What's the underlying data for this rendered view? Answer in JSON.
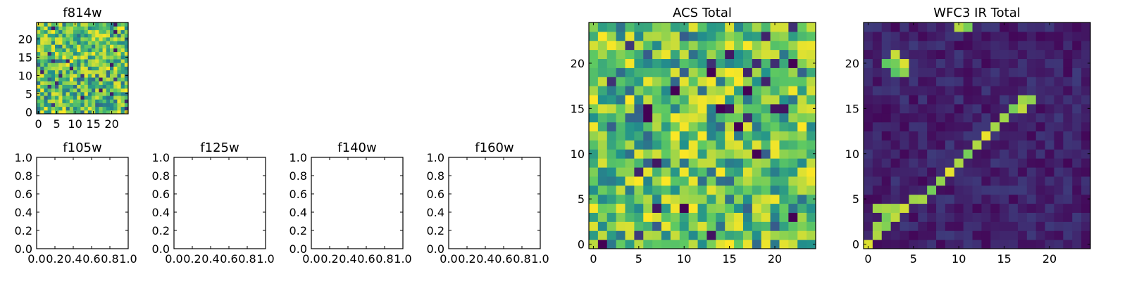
{
  "figure": {
    "background": "#ffffff",
    "colormap": "viridis",
    "colormap_stops": [
      "#440154",
      "#3b528b",
      "#21918c",
      "#5ec962",
      "#fde725"
    ]
  },
  "chart_data": [
    {
      "type": "heatmap",
      "title": "f814w",
      "grid_size": 25,
      "xlim": [
        -0.5,
        24.5
      ],
      "ylim": [
        -0.5,
        24.5
      ],
      "xticks": [
        0,
        5,
        10,
        15,
        20
      ],
      "yticks": [
        0,
        5,
        10,
        15,
        20
      ],
      "tick_labels_x": [
        "0",
        "5",
        "10",
        "15",
        "20"
      ],
      "tick_labels_y": [
        "0",
        "5",
        "10",
        "15",
        "20"
      ],
      "grid": false,
      "values_summary": "random noise field, mostly mid-to-high intensity (green/yellow) with scattered dark pixels"
    },
    {
      "type": "heatmap",
      "title": "f105w",
      "empty": true,
      "xlim": [
        0,
        1
      ],
      "ylim": [
        0,
        1
      ],
      "tick_labels_x": [
        "0.0",
        "0.2",
        "0.4",
        "0.6",
        "0.8",
        "1.0"
      ],
      "tick_labels_y": [
        "0.0",
        "0.2",
        "0.4",
        "0.6",
        "0.8",
        "1.0"
      ],
      "grid": false
    },
    {
      "type": "heatmap",
      "title": "f125w",
      "empty": true,
      "xlim": [
        0,
        1
      ],
      "ylim": [
        0,
        1
      ],
      "tick_labels_x": [
        "0.0",
        "0.2",
        "0.4",
        "0.6",
        "0.8",
        "1.0"
      ],
      "tick_labels_y": [
        "0.0",
        "0.2",
        "0.4",
        "0.6",
        "0.8",
        "1.0"
      ],
      "grid": false
    },
    {
      "type": "heatmap",
      "title": "f140w",
      "empty": true,
      "xlim": [
        0,
        1
      ],
      "ylim": [
        0,
        1
      ],
      "tick_labels_x": [
        "0.0",
        "0.2",
        "0.4",
        "0.6",
        "0.8",
        "1.0"
      ],
      "tick_labels_y": [
        "0.0",
        "0.2",
        "0.4",
        "0.6",
        "0.8",
        "1.0"
      ],
      "grid": false
    },
    {
      "type": "heatmap",
      "title": "f160w",
      "empty": true,
      "xlim": [
        0,
        1
      ],
      "ylim": [
        0,
        1
      ],
      "tick_labels_x": [
        "0.0",
        "0.2",
        "0.4",
        "0.6",
        "0.8",
        "1.0"
      ],
      "tick_labels_y": [
        "0.0",
        "0.2",
        "0.4",
        "0.6",
        "0.8",
        "1.0"
      ],
      "grid": false
    },
    {
      "type": "heatmap",
      "title": "ACS Total",
      "grid_size": 25,
      "xlim": [
        -0.5,
        24.5
      ],
      "ylim": [
        -0.5,
        24.5
      ],
      "xticks": [
        0,
        5,
        10,
        15,
        20
      ],
      "yticks": [
        0,
        5,
        10,
        15,
        20
      ],
      "tick_labels_x": [
        "0",
        "5",
        "10",
        "15",
        "20"
      ],
      "tick_labels_y": [
        "0",
        "5",
        "10",
        "15",
        "20"
      ],
      "grid": false,
      "values_summary": "random noise field, mostly mid-to-high intensity with a few dark pixels",
      "dark_pixels": [
        [
          1,
          0
        ],
        [
          6,
          15
        ],
        [
          6,
          14
        ],
        [
          9,
          17
        ],
        [
          13,
          19
        ],
        [
          16,
          13
        ],
        [
          17,
          17
        ],
        [
          18,
          10
        ],
        [
          22,
          3
        ],
        [
          22,
          20
        ],
        [
          10,
          4
        ],
        [
          14,
          15
        ]
      ]
    },
    {
      "type": "heatmap",
      "title": "WFC3 IR Total",
      "grid_size": 25,
      "xlim": [
        -0.5,
        24.5
      ],
      "ylim": [
        -0.5,
        24.5
      ],
      "xticks": [
        0,
        5,
        10,
        15,
        20
      ],
      "yticks": [
        0,
        5,
        10,
        15,
        20
      ],
      "tick_labels_x": [
        "0",
        "5",
        "10",
        "15",
        "20"
      ],
      "tick_labels_y": [
        "0",
        "5",
        "10",
        "15",
        "20"
      ],
      "grid": false,
      "values_summary": "low-intensity background with a bright diagonal streak from about (0,0) to (18,16) and a bright blob near (3,20)",
      "bright_streak": [
        [
          0,
          0
        ],
        [
          1,
          1
        ],
        [
          1,
          2
        ],
        [
          2,
          2
        ],
        [
          2,
          3
        ],
        [
          3,
          3
        ],
        [
          3,
          4
        ],
        [
          4,
          4
        ],
        [
          5,
          5
        ],
        [
          6,
          5
        ],
        [
          7,
          6
        ],
        [
          8,
          7
        ],
        [
          9,
          8
        ],
        [
          10,
          9
        ],
        [
          11,
          10
        ],
        [
          12,
          11
        ],
        [
          13,
          12
        ],
        [
          14,
          13
        ],
        [
          15,
          14
        ],
        [
          16,
          15
        ],
        [
          17,
          15
        ],
        [
          17,
          16
        ],
        [
          18,
          16
        ],
        [
          1,
          4
        ],
        [
          2,
          4
        ],
        [
          3,
          4
        ]
      ],
      "bright_blob": [
        [
          2,
          20
        ],
        [
          3,
          20
        ],
        [
          4,
          20
        ],
        [
          3,
          19
        ],
        [
          4,
          19
        ],
        [
          3,
          21
        ],
        [
          10,
          24
        ],
        [
          11,
          24
        ]
      ]
    }
  ]
}
